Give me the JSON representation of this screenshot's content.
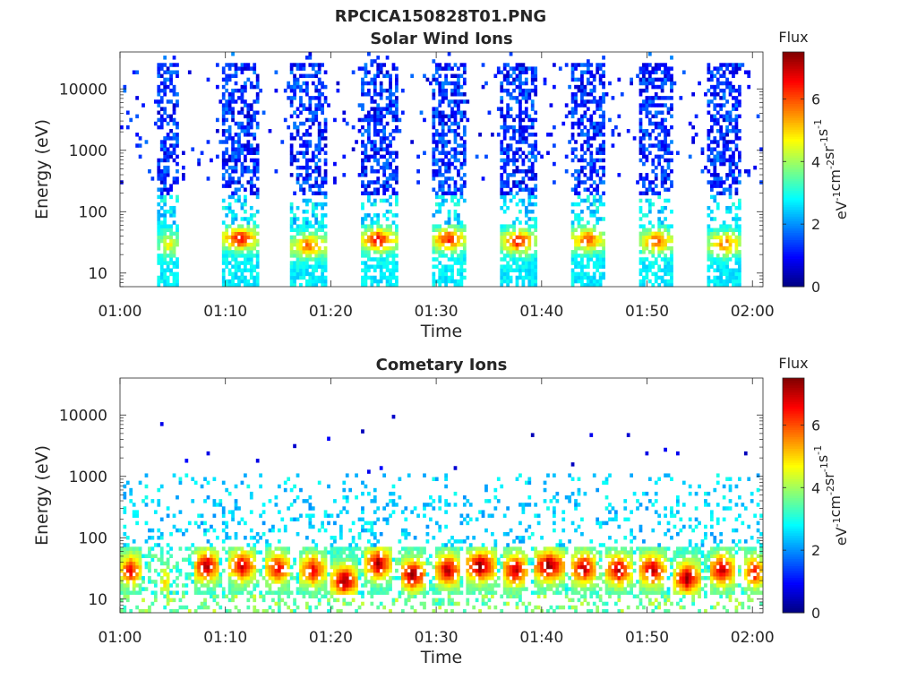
{
  "figure": {
    "title": "RPCICA150828T01.PNG"
  },
  "colors": {
    "colormap": "jet",
    "axes": "#262626",
    "background": "#ffffff"
  },
  "chart_data": [
    {
      "type": "heatmap",
      "title": "Solar Wind Ions",
      "xlabel": "Time",
      "ylabel": "Energy (eV)",
      "yscale": "log",
      "ylim": [
        6,
        40000
      ],
      "xlim": [
        "01:00",
        "02:01"
      ],
      "x_tick_labels": [
        "01:00",
        "01:10",
        "01:20",
        "01:30",
        "01:40",
        "01:50",
        "02:00"
      ],
      "y_tick_values": [
        10,
        100,
        1000,
        10000
      ],
      "y_tick_labels": [
        "10",
        "100",
        "1000",
        "10000"
      ],
      "colorbar": {
        "title": "Flux",
        "label": "eV-1cm-2sr-1s-1",
        "label_parts": [
          {
            "t": "eV",
            "sup": "-1"
          },
          {
            "t": "cm",
            "sup": "-2"
          },
          {
            "t": "sr",
            "sup": "-1"
          },
          {
            "t": "s",
            "sup": "-1"
          }
        ],
        "range": [
          0,
          7.5
        ],
        "tick_labels": [
          "0",
          "2",
          "4",
          "6"
        ]
      },
      "grid": false,
      "description_of_pattern": "periodic bursts roughly every 6.6 min; high energy (300-20000 eV) low flux ~1-2, low energy (20-40 eV) flux peak ~6",
      "bursts": [
        {
          "center_min": 4.6,
          "width_min": 2.0,
          "peak_energy_eV": 30,
          "peak_flux": 4.6
        },
        {
          "center_min": 11.4,
          "width_min": 3.3,
          "peak_energy_eV": 37,
          "peak_flux": 6.5
        },
        {
          "center_min": 17.9,
          "width_min": 3.5,
          "peak_energy_eV": 28,
          "peak_flux": 5.6
        },
        {
          "center_min": 24.5,
          "width_min": 3.5,
          "peak_energy_eV": 35,
          "peak_flux": 6.4
        },
        {
          "center_min": 31.2,
          "width_min": 3.3,
          "peak_energy_eV": 35,
          "peak_flux": 6.2
        },
        {
          "center_min": 37.8,
          "width_min": 3.3,
          "peak_energy_eV": 33,
          "peak_flux": 6.3
        },
        {
          "center_min": 44.4,
          "width_min": 3.3,
          "peak_energy_eV": 35,
          "peak_flux": 5.8
        },
        {
          "center_min": 50.9,
          "width_min": 3.3,
          "peak_energy_eV": 33,
          "peak_flux": 5.8
        },
        {
          "center_min": 57.4,
          "width_min": 3.3,
          "peak_energy_eV": 30,
          "peak_flux": 5.6
        }
      ]
    },
    {
      "type": "heatmap",
      "title": "Cometary Ions",
      "xlabel": "Time",
      "ylabel": "Energy (eV)",
      "yscale": "log",
      "ylim": [
        6,
        40000
      ],
      "xlim": [
        "01:00",
        "02:01"
      ],
      "x_tick_labels": [
        "01:00",
        "01:10",
        "01:20",
        "01:30",
        "01:40",
        "01:50",
        "02:00"
      ],
      "y_tick_values": [
        10,
        100,
        1000,
        10000
      ],
      "y_tick_labels": [
        "10",
        "100",
        "1000",
        "10000"
      ],
      "colorbar": {
        "title": "Flux",
        "label": "eV-1cm-2sr-1s-1",
        "label_parts": [
          {
            "t": "eV",
            "sup": "-1"
          },
          {
            "t": "cm",
            "sup": "-2"
          },
          {
            "t": "sr",
            "sup": "-1"
          },
          {
            "t": "s",
            "sup": "-1"
          }
        ],
        "range": [
          0,
          7.5
        ],
        "tick_labels": [
          "0",
          "2",
          "4",
          "6"
        ]
      },
      "grid": false,
      "description_of_pattern": "continuous band 15-60 eV with peaks flux ~7 roughly every 3.3 min; sparse flux 2-3 at 100-1000 eV; isolated low-flux dots up to 10000 eV",
      "bursts": [
        {
          "center_min": 1.0,
          "width_min": 2.0,
          "peak_energy_eV": 30,
          "peak_flux": 6.5
        },
        {
          "center_min": 4.3,
          "width_min": 1.0,
          "peak_energy_eV": 20,
          "peak_flux": 4.8
        },
        {
          "center_min": 8.2,
          "width_min": 2.5,
          "peak_energy_eV": 35,
          "peak_flux": 7.0
        },
        {
          "center_min": 11.6,
          "width_min": 2.5,
          "peak_energy_eV": 35,
          "peak_flux": 6.8
        },
        {
          "center_min": 15.0,
          "width_min": 2.5,
          "peak_energy_eV": 32,
          "peak_flux": 6.5
        },
        {
          "center_min": 18.3,
          "width_min": 2.5,
          "peak_energy_eV": 30,
          "peak_flux": 6.5
        },
        {
          "center_min": 21.3,
          "width_min": 2.5,
          "peak_energy_eV": 20,
          "peak_flux": 7.2
        },
        {
          "center_min": 24.5,
          "width_min": 2.5,
          "peak_energy_eV": 38,
          "peak_flux": 7.0
        },
        {
          "center_min": 27.8,
          "width_min": 2.5,
          "peak_energy_eV": 25,
          "peak_flux": 7.2
        },
        {
          "center_min": 31.1,
          "width_min": 2.5,
          "peak_energy_eV": 30,
          "peak_flux": 7.0
        },
        {
          "center_min": 34.2,
          "width_min": 3.0,
          "peak_energy_eV": 35,
          "peak_flux": 7.2
        },
        {
          "center_min": 37.5,
          "width_min": 2.5,
          "peak_energy_eV": 30,
          "peak_flux": 7.0
        },
        {
          "center_min": 40.7,
          "width_min": 3.0,
          "peak_energy_eV": 35,
          "peak_flux": 7.3
        },
        {
          "center_min": 44.0,
          "width_min": 2.5,
          "peak_energy_eV": 32,
          "peak_flux": 7.0
        },
        {
          "center_min": 47.3,
          "width_min": 2.5,
          "peak_energy_eV": 30,
          "peak_flux": 7.0
        },
        {
          "center_min": 50.5,
          "width_min": 2.5,
          "peak_energy_eV": 30,
          "peak_flux": 7.0
        },
        {
          "center_min": 53.8,
          "width_min": 2.5,
          "peak_energy_eV": 22,
          "peak_flux": 7.2
        },
        {
          "center_min": 57.1,
          "width_min": 2.5,
          "peak_energy_eV": 30,
          "peak_flux": 7.0
        },
        {
          "center_min": 60.2,
          "width_min": 1.8,
          "peak_energy_eV": 28,
          "peak_flux": 6.5
        }
      ]
    }
  ]
}
